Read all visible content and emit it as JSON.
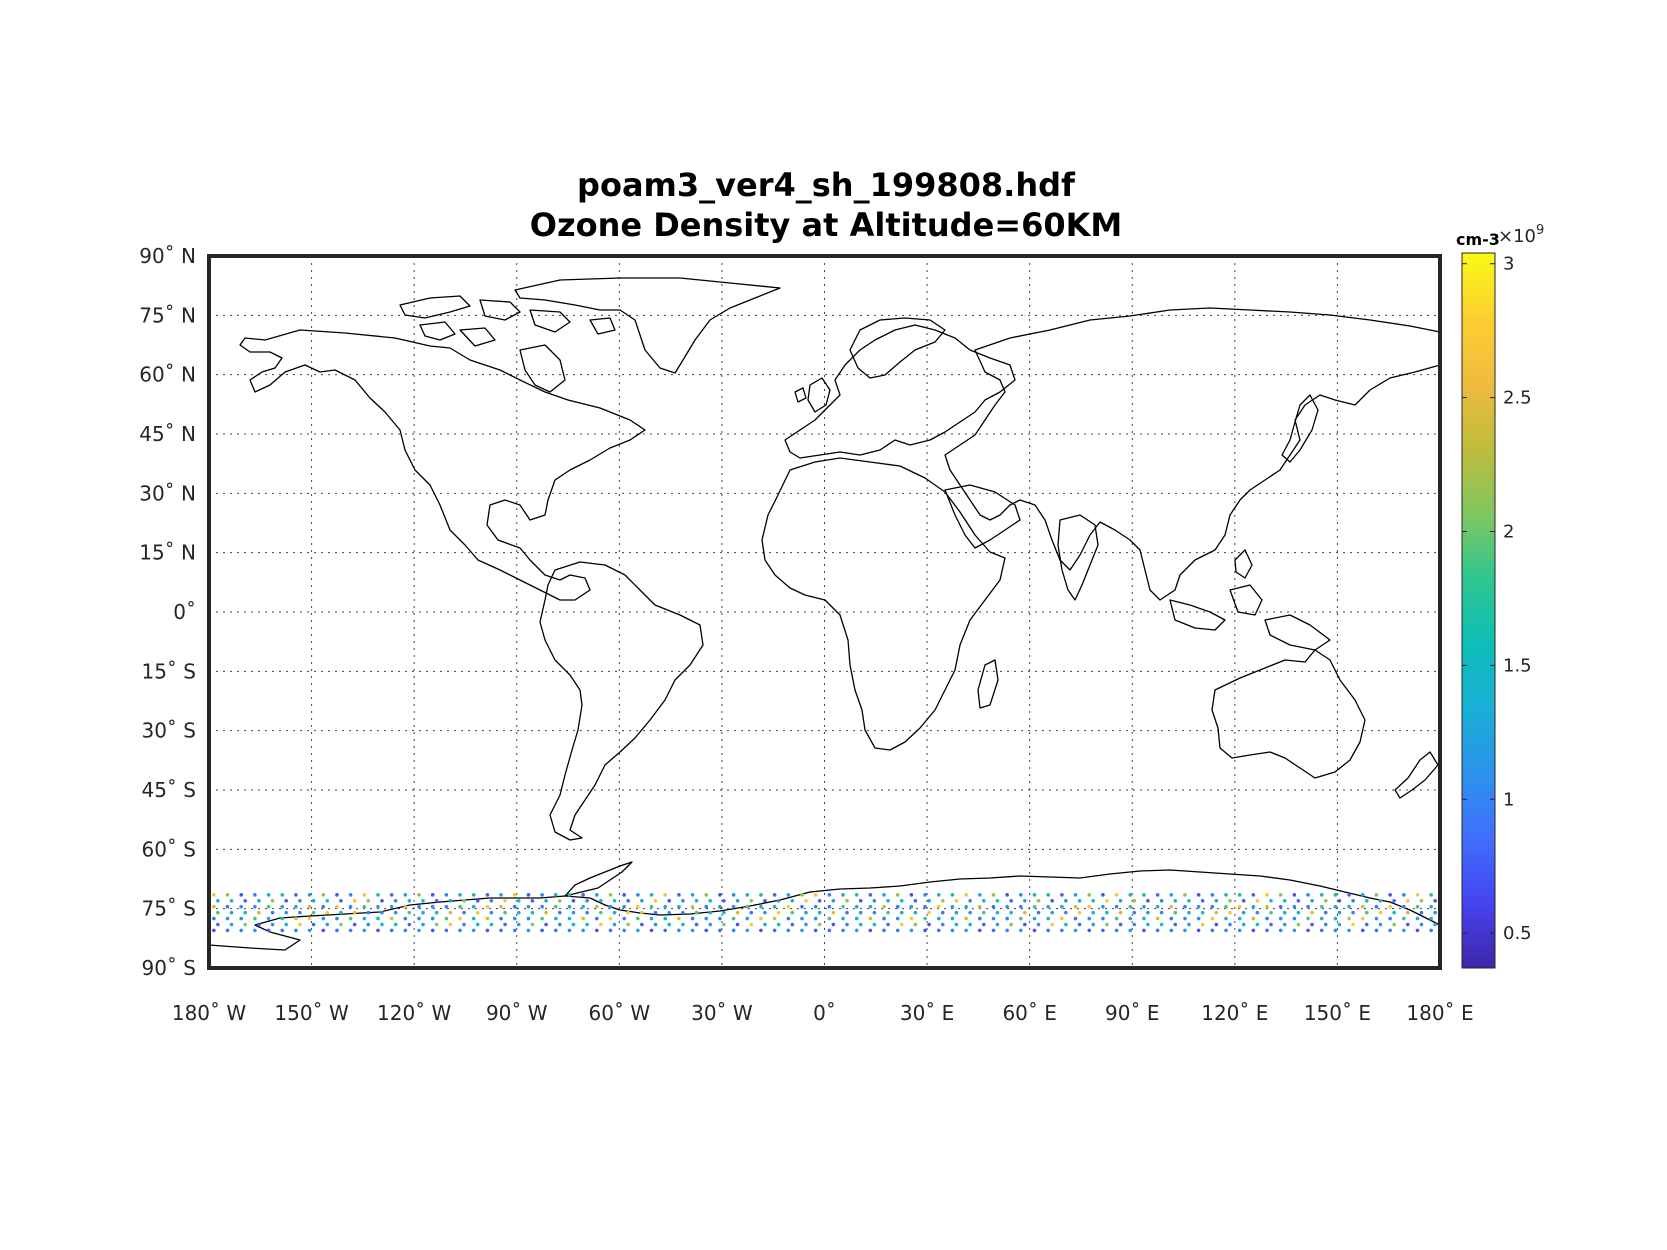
{
  "title": {
    "line1": "poam3_ver4_sh_199808.hdf",
    "line2": "Ozone Density at Altitude=60KM"
  },
  "map": {
    "projection": "equirectangular",
    "lon_range": [
      -180,
      180
    ],
    "lat_range": [
      -90,
      90
    ],
    "grid": true,
    "lon_ticks": [
      {
        "value": -180,
        "label": "180˚ W"
      },
      {
        "value": -150,
        "label": "150˚ W"
      },
      {
        "value": -120,
        "label": "120˚ W"
      },
      {
        "value": -90,
        "label": "90˚ W"
      },
      {
        "value": -60,
        "label": "60˚ W"
      },
      {
        "value": -30,
        "label": "30˚ W"
      },
      {
        "value": 0,
        "label": "0˚"
      },
      {
        "value": 30,
        "label": "30˚ E"
      },
      {
        "value": 60,
        "label": "60˚ E"
      },
      {
        "value": 90,
        "label": "90˚ E"
      },
      {
        "value": 120,
        "label": "120˚ E"
      },
      {
        "value": 150,
        "label": "150˚ E"
      },
      {
        "value": 180,
        "label": "180˚ E"
      }
    ],
    "lat_ticks": [
      {
        "value": 90,
        "label": "90˚ N"
      },
      {
        "value": 75,
        "label": "75˚ N"
      },
      {
        "value": 60,
        "label": "60˚ N"
      },
      {
        "value": 45,
        "label": "45˚ N"
      },
      {
        "value": 30,
        "label": "30˚ N"
      },
      {
        "value": 15,
        "label": "15˚ N"
      },
      {
        "value": 0,
        "label": "0˚"
      },
      {
        "value": -15,
        "label": "15˚ S"
      },
      {
        "value": -30,
        "label": "30˚ S"
      },
      {
        "value": -45,
        "label": "45˚ S"
      },
      {
        "value": -60,
        "label": "60˚ S"
      },
      {
        "value": -75,
        "label": "75˚ S"
      },
      {
        "value": -90,
        "label": "90˚ S"
      }
    ]
  },
  "colorbar": {
    "unit": "cm-3",
    "exponent": "×10",
    "exponent_power": "9",
    "range": [
      0.37,
      3.04
    ],
    "ticks": [
      {
        "value": 0.5,
        "label": "0.5"
      },
      {
        "value": 1,
        "label": "1"
      },
      {
        "value": 1.5,
        "label": "1.5"
      },
      {
        "value": 2,
        "label": "2"
      },
      {
        "value": 2.5,
        "label": "2.5"
      },
      {
        "value": 3,
        "label": "3"
      }
    ],
    "colormap": [
      "#3e26a8",
      "#4743f1",
      "#3e6ffd",
      "#2d92ed",
      "#18afd6",
      "#0ebeb8",
      "#2fc68f",
      "#81c65f",
      "#c0bc3c",
      "#f0bb3e",
      "#fccf31",
      "#f9fb14"
    ]
  },
  "chart_data": {
    "type": "scatter",
    "description_unit": "cm-3 (×10^9)",
    "lon_start": -178,
    "lon_step": 4,
    "lon_count": 90,
    "track_lats": [
      -71.5,
      -73.0,
      -74.5,
      -76.0,
      -77.5,
      -79.0,
      -80.5
    ],
    "value_range": [
      0.4,
      3.0
    ],
    "value_pattern_low": [
      1.2,
      1.6,
      1.0,
      2.1,
      0.8,
      1.4,
      0.7
    ],
    "value_pattern_mid": [
      1.5,
      1.9,
      1.1,
      2.4,
      1.3,
      1.0,
      0.9
    ]
  }
}
